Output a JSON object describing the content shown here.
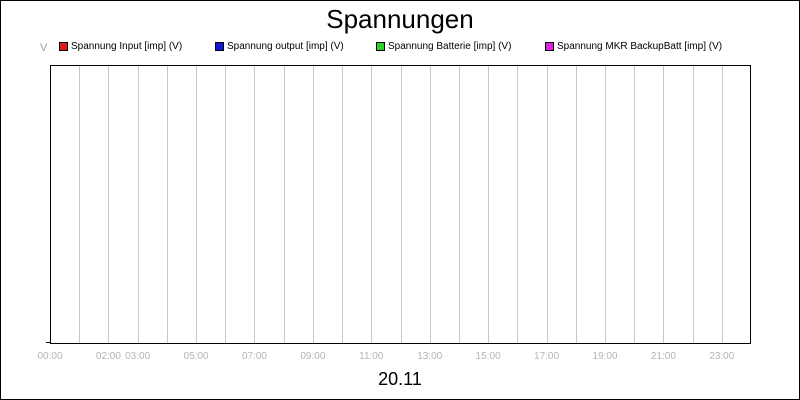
{
  "chart_data": {
    "type": "line",
    "title": "Spannungen",
    "ylabel": "V",
    "xlabel": "20.11",
    "grid": true,
    "legend_position": "top",
    "x_ticks": [
      "00:00",
      "02:00",
      "03:00",
      "05:00",
      "07:00",
      "09:00",
      "11:00",
      "13:00",
      "15:00",
      "17:00",
      "19:00",
      "21:00",
      "23:00"
    ],
    "x_tick_hours": [
      0,
      2,
      3,
      5,
      7,
      9,
      11,
      13,
      15,
      17,
      19,
      21,
      23
    ],
    "x_range_hours": [
      0,
      24
    ],
    "gridline_hours": [
      1,
      2,
      3,
      4,
      5,
      6,
      7,
      8,
      9,
      10,
      11,
      12,
      13,
      14,
      15,
      16,
      17,
      18,
      19,
      20,
      21,
      22,
      23
    ],
    "series": [
      {
        "name": "Spannung Input [imp] (V)",
        "color": "#e01b1b",
        "values": []
      },
      {
        "name": "Spannung output [imp] (V)",
        "color": "#0f18d8",
        "values": []
      },
      {
        "name": "Spannung Batterie [imp] (V)",
        "color": "#2fd12f",
        "values": []
      },
      {
        "name": "Spannung MKR BackupBatt [imp] (V)",
        "color": "#dd22dd",
        "values": []
      }
    ]
  }
}
